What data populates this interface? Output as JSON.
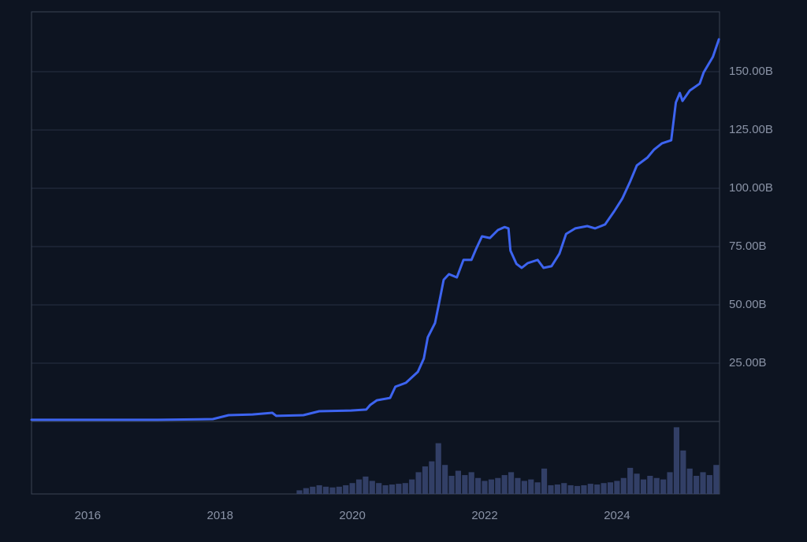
{
  "chart_data": {
    "type": "line",
    "color": "#3d64f0",
    "x": [
      2015.15,
      2017.06,
      2017.89,
      2018.13,
      2018.49,
      2018.79,
      2018.85,
      2019.26,
      2019.5,
      2019.98,
      2020.21,
      2020.27,
      2020.37,
      2020.57,
      2020.65,
      2020.81,
      2020.99,
      2021.08,
      2021.14,
      2021.25,
      2021.31,
      2021.38,
      2021.46,
      2021.58,
      2021.68,
      2021.8,
      2021.87,
      2021.96,
      2022.08,
      2022.2,
      2022.3,
      2022.36,
      2022.39,
      2022.48,
      2022.56,
      2022.65,
      2022.8,
      2022.89,
      2023.01,
      2023.13,
      2023.23,
      2023.37,
      2023.55,
      2023.67,
      2023.82,
      2023.96,
      2024.08,
      2024.2,
      2024.3,
      2024.46,
      2024.56,
      2024.68,
      2024.82,
      2024.89,
      2024.95,
      2024.99,
      2025.1,
      2025.25,
      2025.31,
      2025.45,
      2025.54
    ],
    "values": [
      0.7,
      0.7,
      1.0,
      2.7,
      3.0,
      3.7,
      2.4,
      2.7,
      4.4,
      4.7,
      5.1,
      7.1,
      9.1,
      10.1,
      14.9,
      16.6,
      21.3,
      27.0,
      36.1,
      42.2,
      50.7,
      60.8,
      63.2,
      61.8,
      69.3,
      69.3,
      74.0,
      79.4,
      78.7,
      82.1,
      83.4,
      82.8,
      73.3,
      67.6,
      65.9,
      67.9,
      69.3,
      65.9,
      66.6,
      72.0,
      80.4,
      82.8,
      83.8,
      82.8,
      84.5,
      90.2,
      95.6,
      103.0,
      109.8,
      113.2,
      116.6,
      119.3,
      120.6,
      136.8,
      140.9,
      137.5,
      141.9,
      144.9,
      149.7,
      156.4,
      163.9
    ],
    "xlim": [
      2015.15,
      2025.55
    ],
    "xticks": [
      2016,
      2018,
      2020,
      2022,
      2024
    ],
    "ylim": [
      0,
      175.7
    ],
    "yticks": [
      {
        "value": 25,
        "label": "25.00B"
      },
      {
        "value": 50,
        "label": "50.00B"
      },
      {
        "value": 75,
        "label": "75.00B"
      },
      {
        "value": 100,
        "label": "100.00B"
      },
      {
        "value": 125,
        "label": "125.00B"
      },
      {
        "value": 150,
        "label": "150.00B"
      }
    ],
    "grid": true,
    "volume": {
      "color": "#3a4672",
      "vlim": [
        0,
        100
      ],
      "x": [
        2019.2,
        2019.3,
        2019.4,
        2019.5,
        2019.6,
        2019.7,
        2019.8,
        2019.9,
        2020.0,
        2020.1,
        2020.2,
        2020.3,
        2020.4,
        2020.5,
        2020.6,
        2020.7,
        2020.8,
        2020.9,
        2021.0,
        2021.1,
        2021.2,
        2021.3,
        2021.4,
        2021.5,
        2021.6,
        2021.7,
        2021.8,
        2021.9,
        2022.0,
        2022.1,
        2022.2,
        2022.3,
        2022.4,
        2022.5,
        2022.6,
        2022.7,
        2022.8,
        2022.9,
        2023.0,
        2023.1,
        2023.2,
        2023.3,
        2023.4,
        2023.5,
        2023.6,
        2023.7,
        2023.8,
        2023.9,
        2024.0,
        2024.1,
        2024.2,
        2024.3,
        2024.4,
        2024.5,
        2024.6,
        2024.7,
        2024.8,
        2024.9,
        2025.0,
        2025.1,
        2025.2,
        2025.3,
        2025.4,
        2025.5
      ],
      "values": [
        5,
        8,
        10,
        12,
        10,
        9,
        10,
        12,
        15,
        20,
        24,
        18,
        15,
        12,
        13,
        14,
        15,
        20,
        30,
        38,
        45,
        70,
        40,
        25,
        32,
        26,
        30,
        22,
        18,
        20,
        22,
        26,
        30,
        22,
        18,
        20,
        16,
        35,
        12,
        13,
        15,
        12,
        11,
        12,
        14,
        13,
        15,
        16,
        18,
        22,
        36,
        28,
        20,
        25,
        22,
        20,
        30,
        92,
        60,
        35,
        25,
        30,
        26,
        40
      ]
    }
  }
}
